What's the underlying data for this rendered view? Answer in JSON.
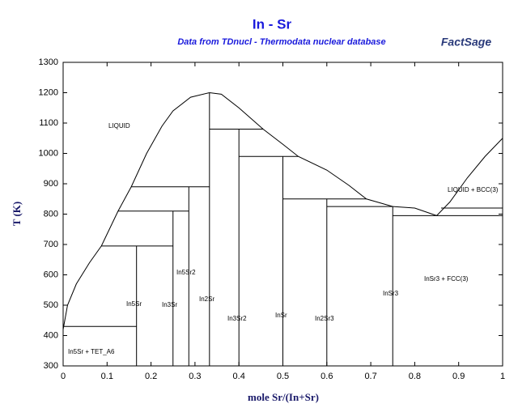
{
  "chart_data": {
    "type": "line",
    "title": "In - Sr",
    "subtitle": "Data from TDnucl - Thermodata nuclear database",
    "logo": "FactSage",
    "x_label": "mole Sr/(In+Sr)",
    "y_label": "T (K)",
    "color": "#000000",
    "xlim": [
      0,
      1
    ],
    "ylim": [
      300,
      1300
    ],
    "xticks": [
      0,
      0.1,
      0.2,
      0.3,
      0.4,
      0.5,
      0.6,
      0.7,
      0.8,
      0.9,
      1
    ],
    "yticks": [
      300,
      400,
      500,
      600,
      700,
      800,
      900,
      1000,
      1100,
      1200,
      1300
    ],
    "series": [
      {
        "x": [
          0,
          0.01,
          0.03,
          0.06,
          0.087,
          0.125,
          0.155,
          0.19,
          0.225,
          0.25,
          0.29,
          0.333
        ],
        "y": [
          420,
          500,
          570,
          640,
          695,
          810,
          890,
          1000,
          1090,
          1140,
          1185,
          1200
        ]
      },
      {
        "x": [
          0.333,
          0.36,
          0.4,
          0.455,
          0.5,
          0.535,
          0.6,
          0.65,
          0.69,
          0.75
        ],
        "y": [
          1200,
          1195,
          1150,
          1080,
          1030,
          990,
          945,
          895,
          850,
          825
        ]
      },
      {
        "x": [
          0.75,
          0.8,
          0.85,
          0.88,
          0.92,
          0.96,
          1
        ],
        "y": [
          825,
          820,
          795,
          840,
          920,
          990,
          1050
        ]
      },
      {
        "x": [
          0,
          0.167
        ],
        "y": [
          430,
          430
        ]
      },
      {
        "x": [
          0.087,
          0.25
        ],
        "y": [
          695,
          695
        ]
      },
      {
        "x": [
          0.125,
          0.286
        ],
        "y": [
          810,
          810
        ]
      },
      {
        "x": [
          0.155,
          0.333
        ],
        "y": [
          890,
          890
        ]
      },
      {
        "x": [
          0.333,
          0.455
        ],
        "y": [
          1080,
          1080
        ]
      },
      {
        "x": [
          0.4,
          0.535
        ],
        "y": [
          990,
          990
        ]
      },
      {
        "x": [
          0.5,
          0.69
        ],
        "y": [
          850,
          850
        ]
      },
      {
        "x": [
          0.6,
          0.75
        ],
        "y": [
          825,
          825
        ]
      },
      {
        "x": [
          0.75,
          1
        ],
        "y": [
          795,
          795
        ]
      },
      {
        "x": [
          0.86,
          1
        ],
        "y": [
          820,
          820
        ]
      },
      {
        "x": [
          0.167,
          0.167
        ],
        "y": [
          300,
          695
        ]
      },
      {
        "x": [
          0.25,
          0.25
        ],
        "y": [
          300,
          810
        ]
      },
      {
        "x": [
          0.286,
          0.286
        ],
        "y": [
          300,
          890
        ]
      },
      {
        "x": [
          0.333,
          0.333
        ],
        "y": [
          300,
          1200
        ]
      },
      {
        "x": [
          0.4,
          0.4
        ],
        "y": [
          300,
          1080
        ]
      },
      {
        "x": [
          0.5,
          0.5
        ],
        "y": [
          300,
          990
        ]
      },
      {
        "x": [
          0.6,
          0.6
        ],
        "y": [
          300,
          850
        ]
      },
      {
        "x": [
          0.75,
          0.75
        ],
        "y": [
          300,
          825
        ]
      }
    ],
    "annotations": [
      "LIQUID",
      "LIQUID + BCC(3)",
      "In5Sr + TET_A6",
      "In5Sr",
      "In3Sr",
      "In5Sr2",
      "In2Sr",
      "In3Sr2",
      "InSr",
      "In2Sr3",
      "InSr3",
      "InSr3 + FCC(3)"
    ]
  }
}
